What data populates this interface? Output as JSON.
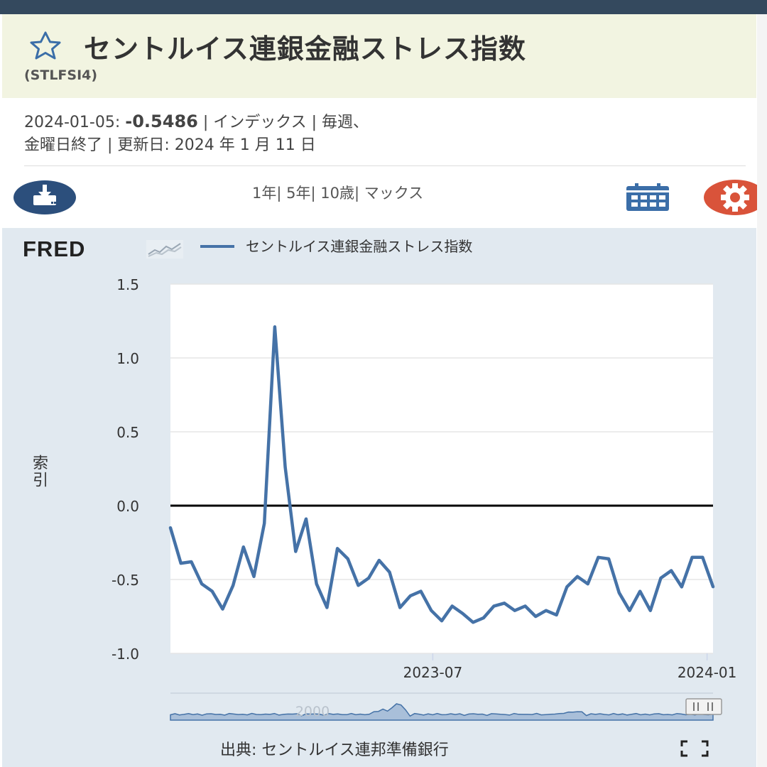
{
  "header": {
    "title": "セントルイス連銀金融ストレス指数",
    "series_id": "(STLFSI4)",
    "meta_line1_prefix": "2024-01-05: ",
    "meta_value": "-0.5486",
    "meta_line1_suffix": " | インデックス | 毎週、",
    "meta_line2": "金曜日終了 | 更新日: 2024 年 1 月 11 日"
  },
  "toolbar": {
    "range_1y": "1年",
    "sep1": "| ",
    "range_5y": "5年",
    "sep2": "| ",
    "range_10y": "10歳",
    "sep3": "| ",
    "range_max": "マックス",
    "download_icon": "download-icon",
    "calendar_icon": "calendar-icon",
    "settings_icon": "gear-icon"
  },
  "chart": {
    "logo": "FRED",
    "legend": "セントルイス連銀金融ストレス指数",
    "source": "出典: セントルイス連邦準備銀行",
    "navigator_label": "2000",
    "series_color": "#4572a7",
    "zero_line_color": "#000000"
  },
  "chart_data": {
    "type": "line",
    "title": "",
    "ylabel": "索引",
    "xlabel": "",
    "ylim": [
      -1.0,
      1.5
    ],
    "y_ticks": [
      "1.5",
      "1.0",
      "0.5",
      "0.0",
      "-0.5",
      "-1.0"
    ],
    "x_ticks": [
      "2023-07",
      "2024-01"
    ],
    "grid": true,
    "series": [
      {
        "name": "セントルイス連銀金融ストレス指数",
        "x_start": "2023-01-06",
        "x_end": "2024-01-05",
        "frequency": "weekly",
        "values": [
          -0.15,
          -0.39,
          -0.38,
          -0.53,
          -0.58,
          -0.7,
          -0.54,
          -0.28,
          -0.48,
          -0.12,
          1.21,
          0.26,
          -0.31,
          -0.09,
          -0.53,
          -0.69,
          -0.29,
          -0.36,
          -0.54,
          -0.49,
          -0.37,
          -0.45,
          -0.69,
          -0.61,
          -0.58,
          -0.71,
          -0.78,
          -0.68,
          -0.73,
          -0.79,
          -0.76,
          -0.68,
          -0.66,
          -0.71,
          -0.68,
          -0.75,
          -0.71,
          -0.74,
          -0.55,
          -0.48,
          -0.53,
          -0.35,
          -0.36,
          -0.59,
          -0.71,
          -0.58,
          -0.71,
          -0.49,
          -0.44,
          -0.55,
          -0.35,
          -0.35,
          -0.5486
        ]
      }
    ]
  }
}
